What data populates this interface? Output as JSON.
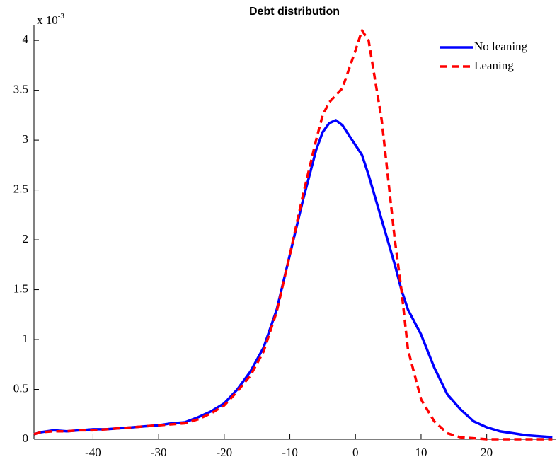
{
  "chart_data": {
    "type": "line",
    "title": "Debt distribution",
    "y_multiplier": "x 10",
    "y_multiplier_exponent": "-3",
    "x": [
      -49,
      -48,
      -46,
      -44,
      -42,
      -40,
      -38,
      -36,
      -34,
      -32,
      -30,
      -28,
      -26,
      -24,
      -22,
      -20,
      -18,
      -16,
      -14,
      -12,
      -10,
      -8,
      -6,
      -5,
      -4,
      -3,
      -2,
      0,
      1,
      2,
      4,
      6,
      7,
      8,
      10,
      12,
      14,
      16,
      18,
      20,
      22,
      24,
      26,
      28,
      30
    ],
    "series": [
      {
        "name": "No leaning",
        "color": "#0000ff",
        "dash": "solid",
        "values": [
          0.05,
          0.07,
          0.09,
          0.08,
          0.09,
          0.1,
          0.1,
          0.11,
          0.12,
          0.13,
          0.14,
          0.16,
          0.17,
          0.22,
          0.28,
          0.36,
          0.5,
          0.68,
          0.92,
          1.3,
          1.85,
          2.4,
          2.9,
          3.08,
          3.17,
          3.2,
          3.15,
          2.95,
          2.85,
          2.65,
          2.2,
          1.75,
          1.5,
          1.3,
          1.05,
          0.72,
          0.45,
          0.3,
          0.18,
          0.12,
          0.08,
          0.06,
          0.04,
          0.03,
          0.02
        ]
      },
      {
        "name": "Leaning",
        "color": "#ff0000",
        "dash": "dashed",
        "values": [
          0.05,
          0.07,
          0.08,
          0.08,
          0.09,
          0.09,
          0.1,
          0.11,
          0.12,
          0.13,
          0.14,
          0.15,
          0.16,
          0.2,
          0.26,
          0.34,
          0.48,
          0.64,
          0.88,
          1.28,
          1.85,
          2.45,
          3.0,
          3.25,
          3.38,
          3.45,
          3.52,
          3.9,
          4.1,
          4.0,
          3.2,
          2.0,
          1.5,
          0.9,
          0.4,
          0.18,
          0.06,
          0.02,
          0.01,
          0,
          0,
          0,
          0,
          0,
          0
        ]
      }
    ],
    "xlim": [
      -49,
      30.5
    ],
    "xticks": [
      -40,
      -30,
      -20,
      -10,
      0,
      10,
      20
    ],
    "ylim": [
      0,
      4.15
    ],
    "yticks": [
      0,
      0.5,
      1,
      1.5,
      2,
      2.5,
      3,
      3.5,
      4
    ],
    "legend": "top-right"
  }
}
